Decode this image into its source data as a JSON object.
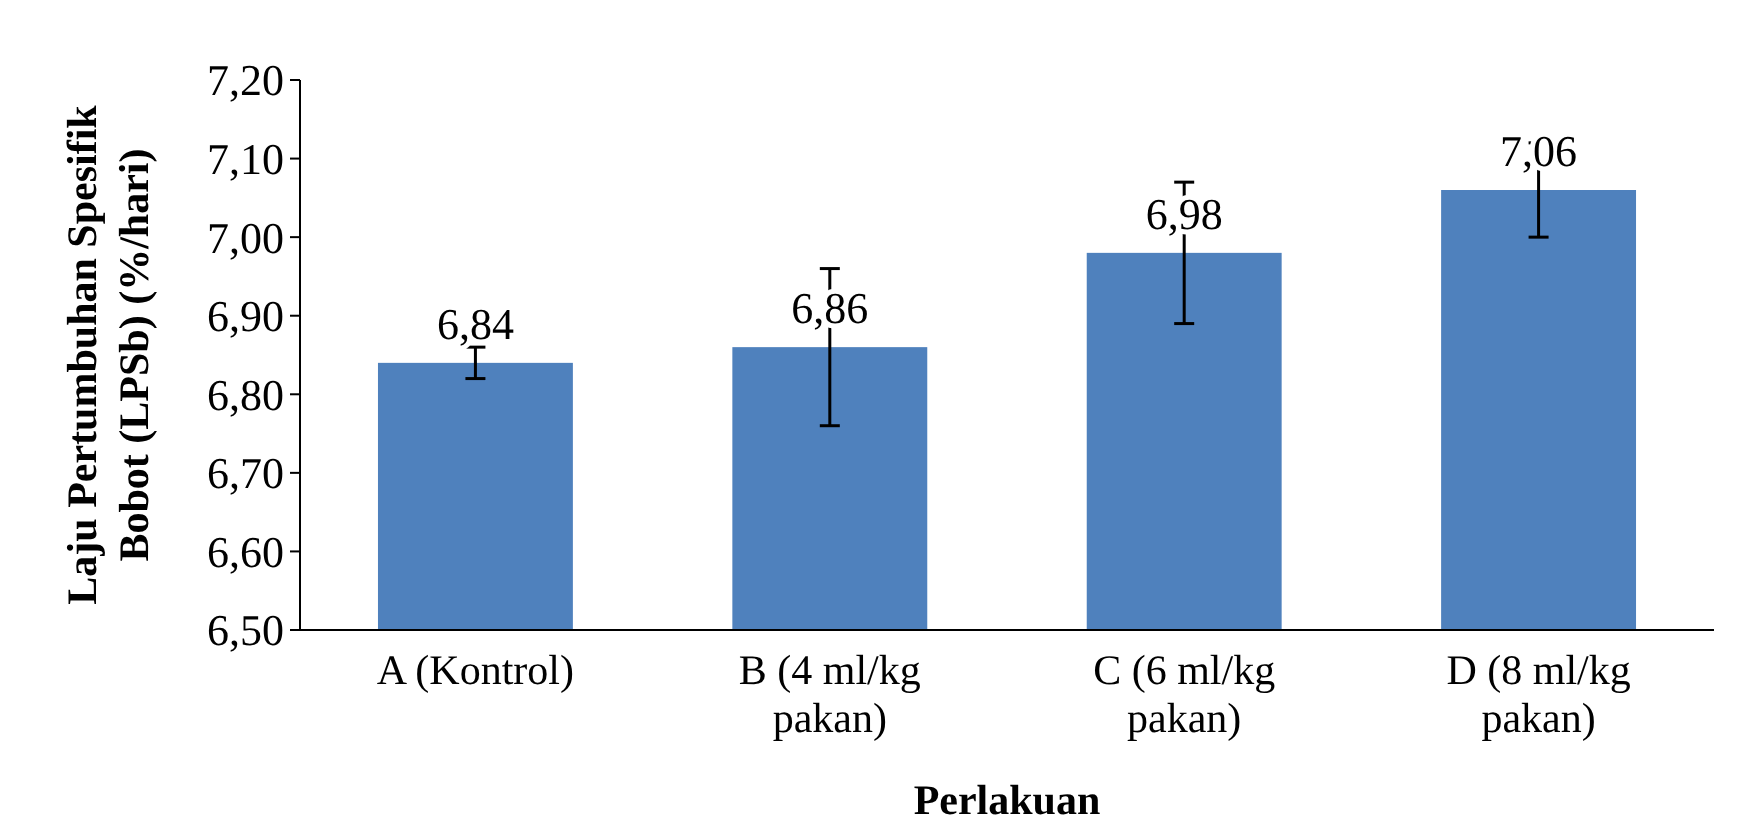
{
  "chart_data": {
    "type": "bar",
    "xlabel": "Perlakuan",
    "ylabel": "Laju Pertumbuhan Spesifik Bobot (LPSb) (%/hari)",
    "categories": [
      "A (Kontrol)",
      "B (4 ml/kg pakan)",
      "C (6 ml/kg pakan)",
      "D (8 ml/kg pakan)"
    ],
    "values": [
      6.84,
      6.86,
      6.98,
      7.06
    ],
    "errors": [
      0.02,
      0.1,
      0.09,
      0.06
    ],
    "value_labels": [
      "6,84",
      "6,86",
      "6,98",
      "7,06"
    ],
    "color": "#4f81bd",
    "ylim": [
      6.5,
      7.2
    ],
    "yticks": [
      {
        "value": 6.5,
        "label": "6,50"
      },
      {
        "value": 6.6,
        "label": "6,60"
      },
      {
        "value": 6.7,
        "label": "6,70"
      },
      {
        "value": 6.8,
        "label": "6,80"
      },
      {
        "value": 6.9,
        "label": "6,90"
      },
      {
        "value": 7.0,
        "label": "7,00"
      },
      {
        "value": 7.1,
        "label": "7,10"
      },
      {
        "value": 7.2,
        "label": "7,20"
      }
    ],
    "grid": false
  }
}
